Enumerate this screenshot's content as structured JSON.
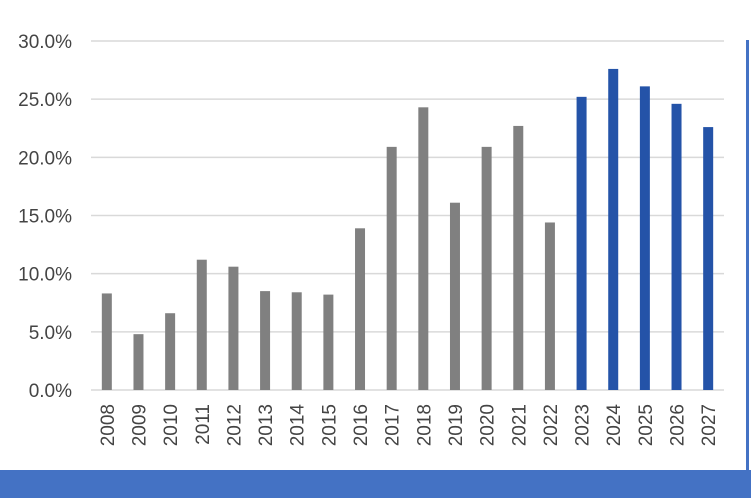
{
  "chart_data": {
    "type": "bar",
    "categories": [
      "2008",
      "2009",
      "2010",
      "2011",
      "2012",
      "2013",
      "2014",
      "2015",
      "2016",
      "2017",
      "2018",
      "2019",
      "2020",
      "2021",
      "2022",
      "2023",
      "2024",
      "2025",
      "2026",
      "2027"
    ],
    "values": [
      8.3,
      4.8,
      6.6,
      11.2,
      10.6,
      8.5,
      8.4,
      8.2,
      13.9,
      20.9,
      24.3,
      16.1,
      20.9,
      22.7,
      14.4,
      25.2,
      27.6,
      26.1,
      24.6,
      22.6
    ],
    "y_unit": "%",
    "ylim": [
      0,
      30
    ],
    "yticks": [
      "0.0%",
      "5.0%",
      "10.0%",
      "15.0%",
      "20.0%",
      "25.0%",
      "30.0%"
    ],
    "grid": true,
    "legend": "none",
    "colors": {
      "actual": "#808080",
      "forecast": "#2453a8",
      "grid": "#d9d9d9",
      "axis_text": "#444444",
      "band": "#4472c4"
    },
    "series_by_category": [
      "actual",
      "actual",
      "actual",
      "actual",
      "actual",
      "actual",
      "actual",
      "actual",
      "actual",
      "actual",
      "actual",
      "actual",
      "actual",
      "actual",
      "actual",
      "forecast",
      "forecast",
      "forecast",
      "forecast",
      "forecast"
    ]
  }
}
